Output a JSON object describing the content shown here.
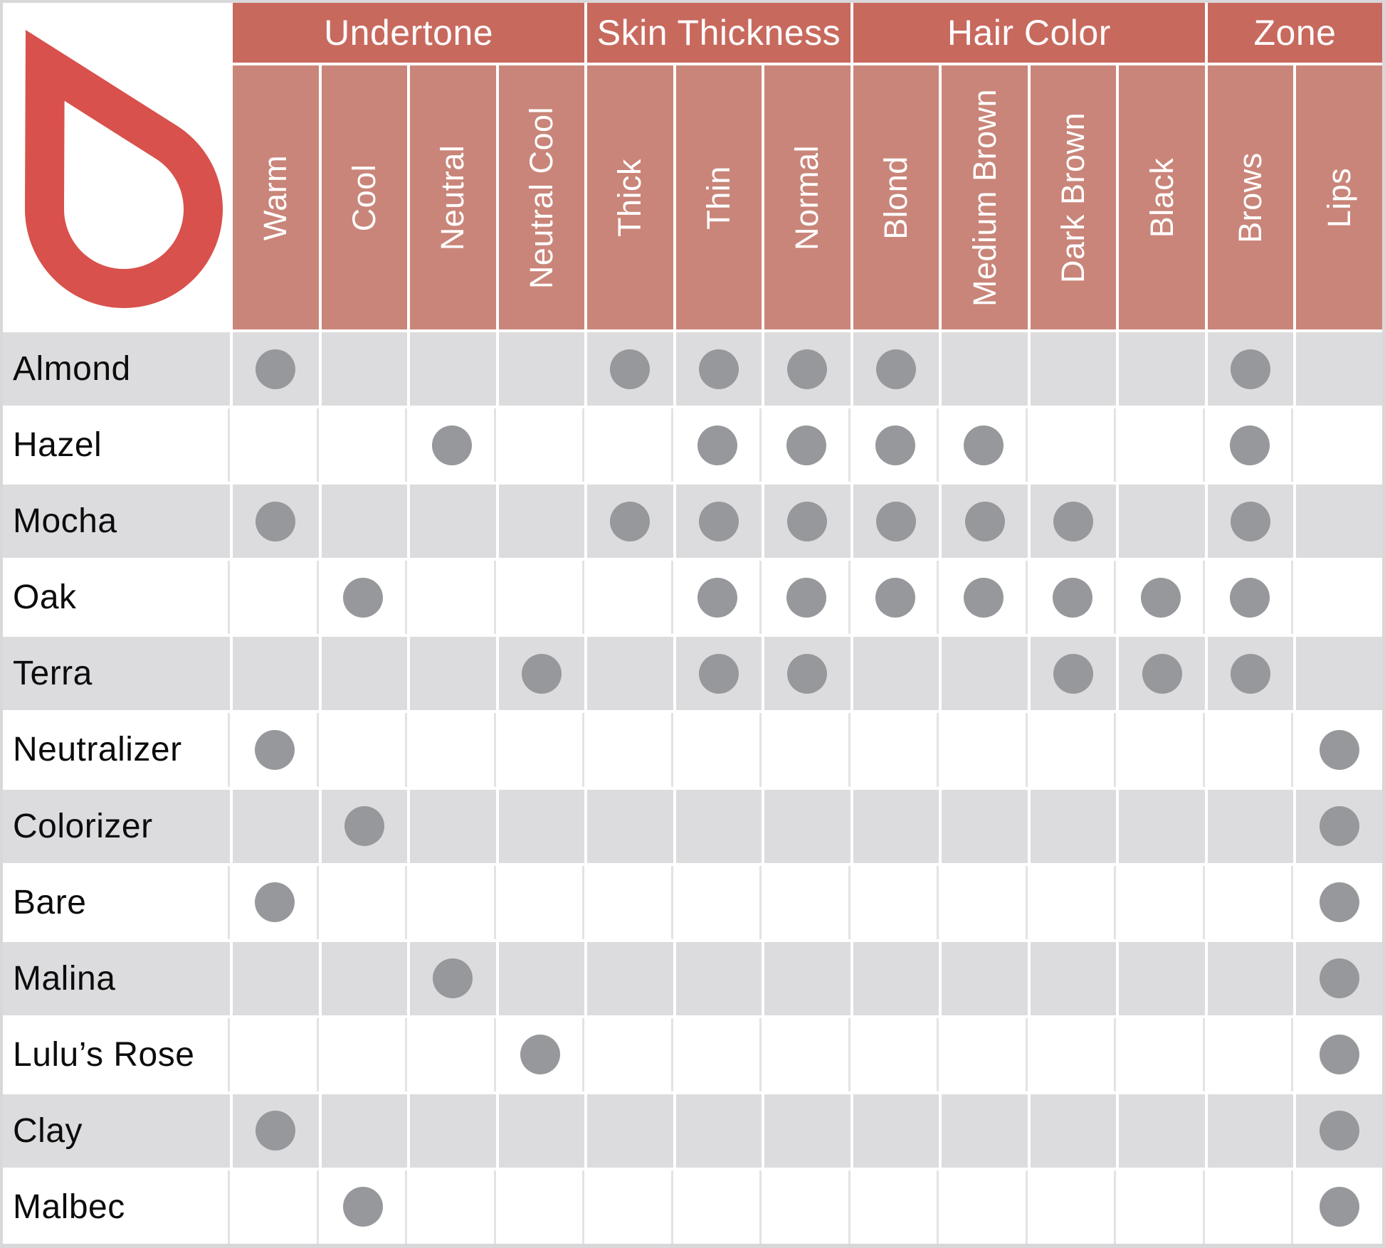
{
  "logo": {
    "icon": "drop-logo",
    "color": "#d8514c"
  },
  "colors": {
    "page_bg": "#d8d8da",
    "group_header_bg": "#c8695e",
    "subheader_bg": "#c98579",
    "header_text": "#ffffff",
    "row_alt_bg": "#dcdcde",
    "row_bg": "#ffffff",
    "row_label_text": "#0c0c0c",
    "dot": "#96989c",
    "white_row_divider": "#e3e3e5"
  },
  "chart_data": {
    "type": "table",
    "title": "",
    "legend_position": "none",
    "grid": true,
    "mark_symbol": "dot",
    "column_groups": [
      {
        "label": "Undertone",
        "columns": [
          "Warm",
          "Cool",
          "Neutral",
          "Neutral Cool"
        ]
      },
      {
        "label": "Skin Thickness",
        "columns": [
          "Thick",
          "Thin",
          "Normal"
        ]
      },
      {
        "label": "Hair Color",
        "columns": [
          "Blond",
          "Medium Brown",
          "Dark Brown",
          "Black"
        ]
      },
      {
        "label": "Zone",
        "columns": [
          "Brows",
          "Lips"
        ]
      }
    ],
    "rows": [
      {
        "label": "Almond",
        "marks": [
          "Warm",
          "Thick",
          "Thin",
          "Normal",
          "Blond",
          "Brows"
        ]
      },
      {
        "label": "Hazel",
        "marks": [
          "Neutral",
          "Thin",
          "Normal",
          "Blond",
          "Medium Brown",
          "Brows"
        ]
      },
      {
        "label": "Mocha",
        "marks": [
          "Warm",
          "Thick",
          "Thin",
          "Normal",
          "Blond",
          "Medium Brown",
          "Dark Brown",
          "Brows"
        ]
      },
      {
        "label": "Oak",
        "marks": [
          "Cool",
          "Thin",
          "Normal",
          "Blond",
          "Medium Brown",
          "Dark Brown",
          "Black",
          "Brows"
        ]
      },
      {
        "label": "Terra",
        "marks": [
          "Neutral Cool",
          "Thin",
          "Normal",
          "Dark Brown",
          "Black",
          "Brows"
        ]
      },
      {
        "label": "Neutralizer",
        "marks": [
          "Warm",
          "Lips"
        ]
      },
      {
        "label": "Colorizer",
        "marks": [
          "Cool",
          "Lips"
        ]
      },
      {
        "label": "Bare",
        "marks": [
          "Warm",
          "Lips"
        ]
      },
      {
        "label": "Malina",
        "marks": [
          "Neutral",
          "Lips"
        ]
      },
      {
        "label": "Lulu’s Rose",
        "marks": [
          "Neutral Cool",
          "Lips"
        ]
      },
      {
        "label": "Clay",
        "marks": [
          "Warm",
          "Lips"
        ]
      },
      {
        "label": "Malbec",
        "marks": [
          "Cool",
          "Lips"
        ]
      }
    ]
  }
}
